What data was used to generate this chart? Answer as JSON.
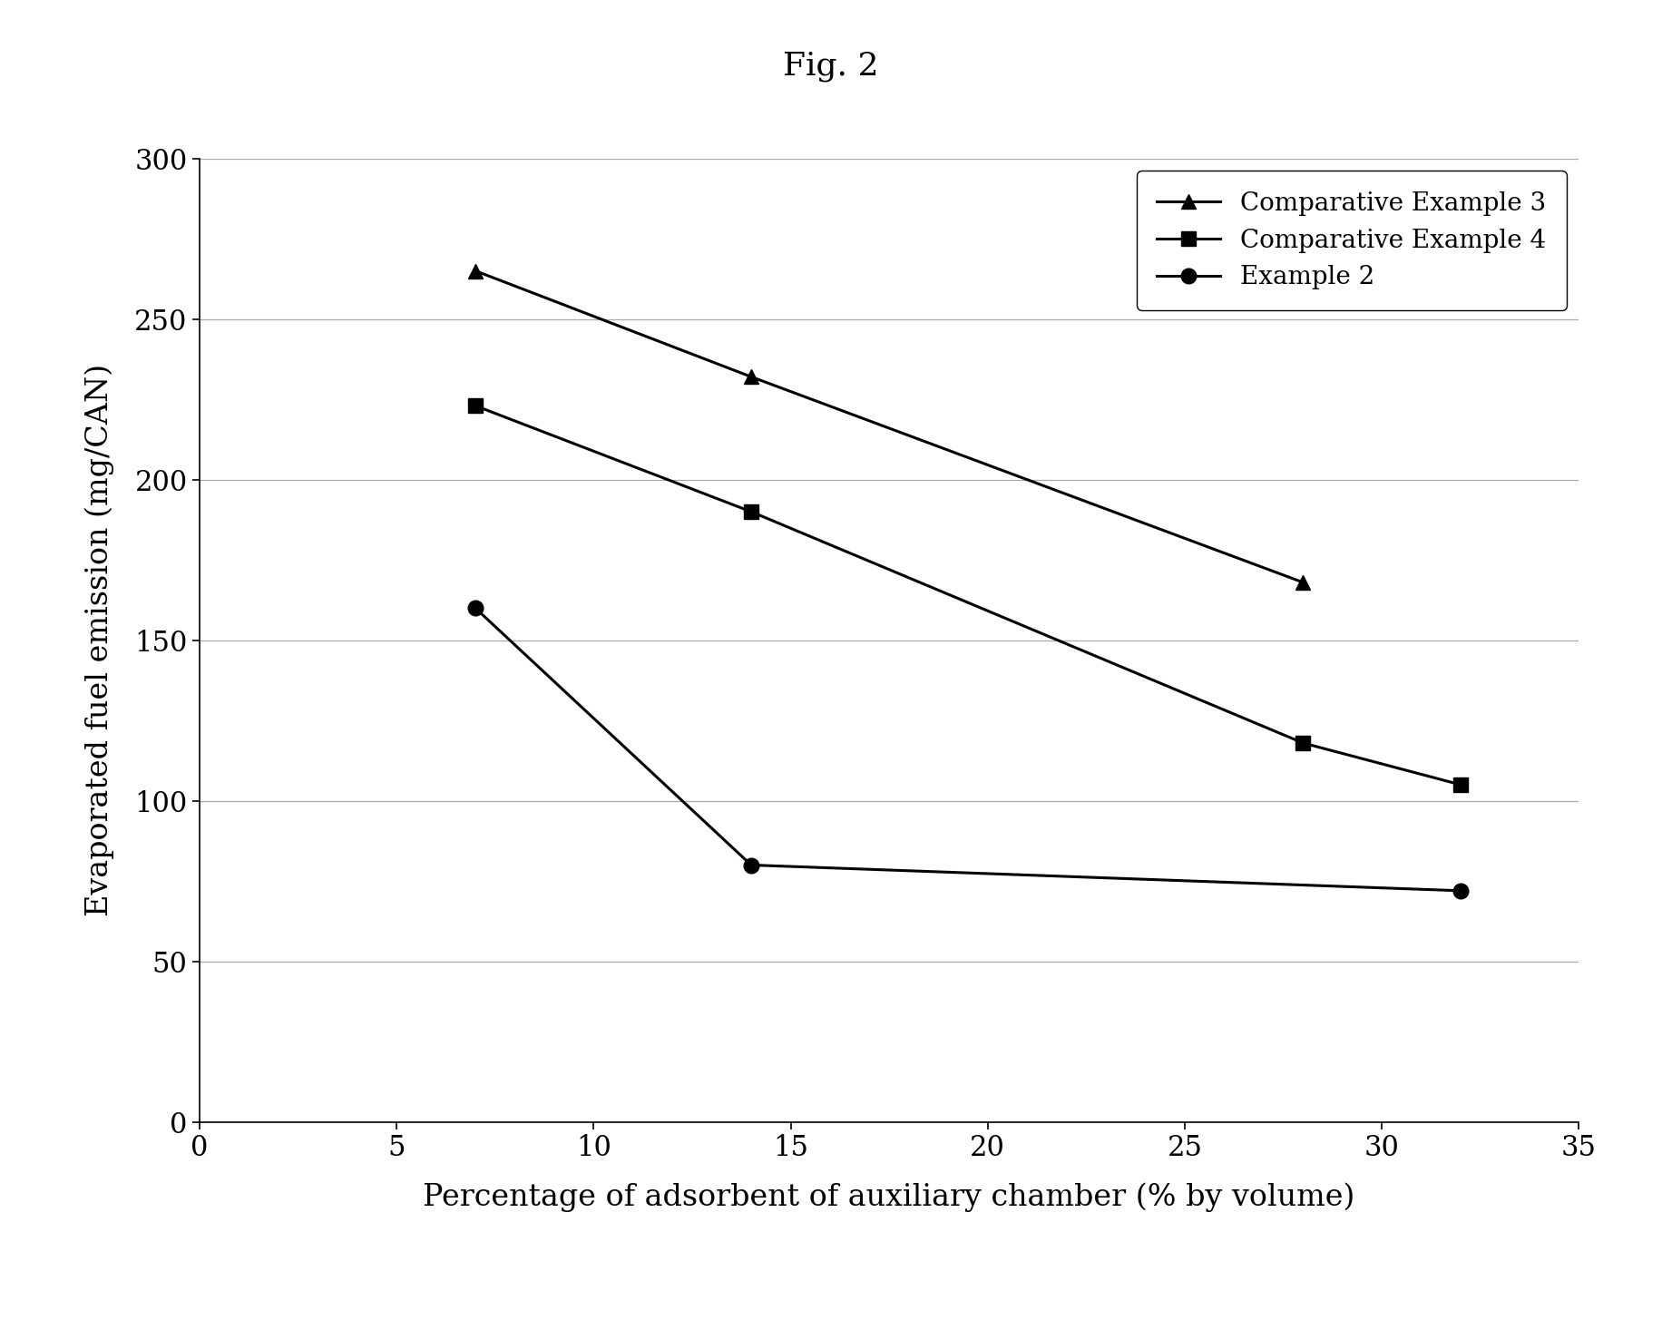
{
  "title": "Fig. 2",
  "xlabel": "Percentage of adsorbent of auxiliary chamber (% by volume)",
  "ylabel": "Evaporated fuel emission (mg/CAN)",
  "xlim": [
    0,
    35
  ],
  "ylim": [
    0,
    300
  ],
  "xticks": [
    0,
    5,
    10,
    15,
    20,
    25,
    30,
    35
  ],
  "yticks": [
    0,
    50,
    100,
    150,
    200,
    250,
    300
  ],
  "series": [
    {
      "label": "Comparative Example 3",
      "x": [
        7,
        14,
        28
      ],
      "y": [
        265,
        232,
        168
      ],
      "marker": "^",
      "color": "#000000",
      "markersize": 12,
      "linewidth": 2.2
    },
    {
      "label": "Comparative Example 4",
      "x": [
        7,
        14,
        28,
        32
      ],
      "y": [
        223,
        190,
        118,
        105
      ],
      "marker": "s",
      "color": "#000000",
      "markersize": 12,
      "linewidth": 2.2
    },
    {
      "label": "Example 2",
      "x": [
        7,
        14,
        32
      ],
      "y": [
        160,
        80,
        72
      ],
      "marker": "o",
      "color": "#000000",
      "markersize": 12,
      "linewidth": 2.2
    }
  ],
  "legend_loc": "upper right",
  "grid_color": "#aaaaaa",
  "background_color": "#ffffff",
  "title_fontsize": 26,
  "label_fontsize": 24,
  "tick_fontsize": 22,
  "legend_fontsize": 20,
  "title_font": "DejaVu Serif",
  "axis_font": "DejaVu Serif"
}
